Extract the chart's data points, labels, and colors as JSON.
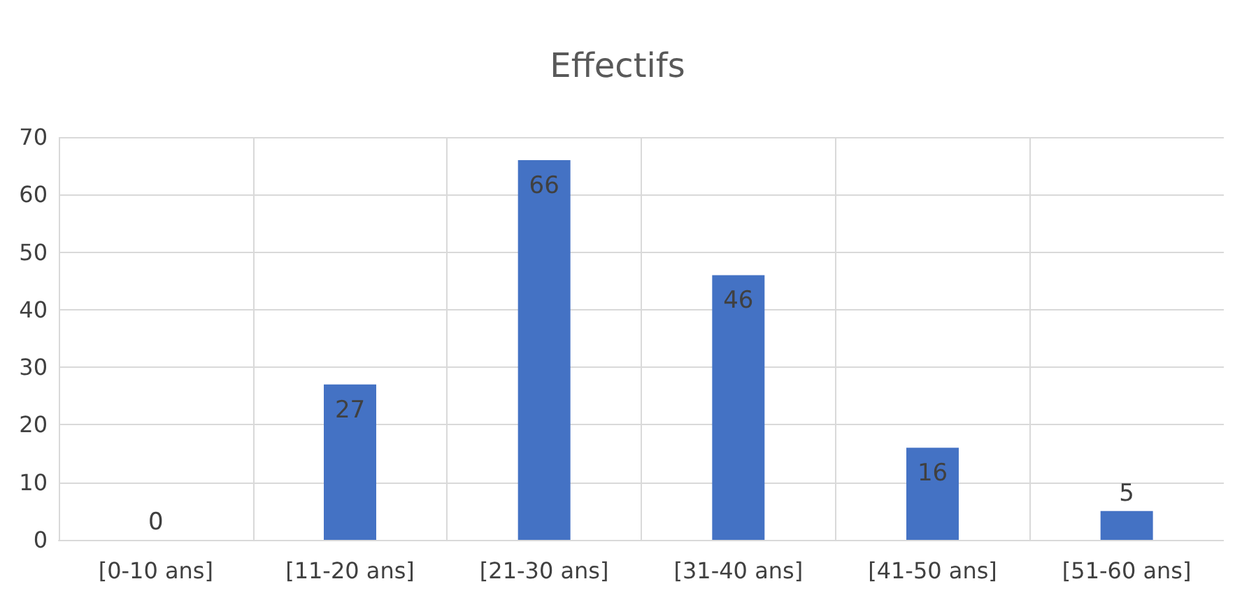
{
  "chart_data": {
    "type": "bar",
    "title": "Effectifs",
    "categories": [
      "[0-10 ans]",
      "[11-20 ans]",
      "[21-30 ans]",
      "[31-40 ans]",
      "[41-50 ans]",
      "[51-60 ans]"
    ],
    "values": [
      0,
      27,
      66,
      46,
      16,
      5
    ],
    "color": "#4472c4",
    "ylim": [
      0,
      70
    ],
    "yticks": [
      0,
      10,
      20,
      30,
      40,
      50,
      60,
      70
    ],
    "grid": true,
    "data_labels": true
  }
}
